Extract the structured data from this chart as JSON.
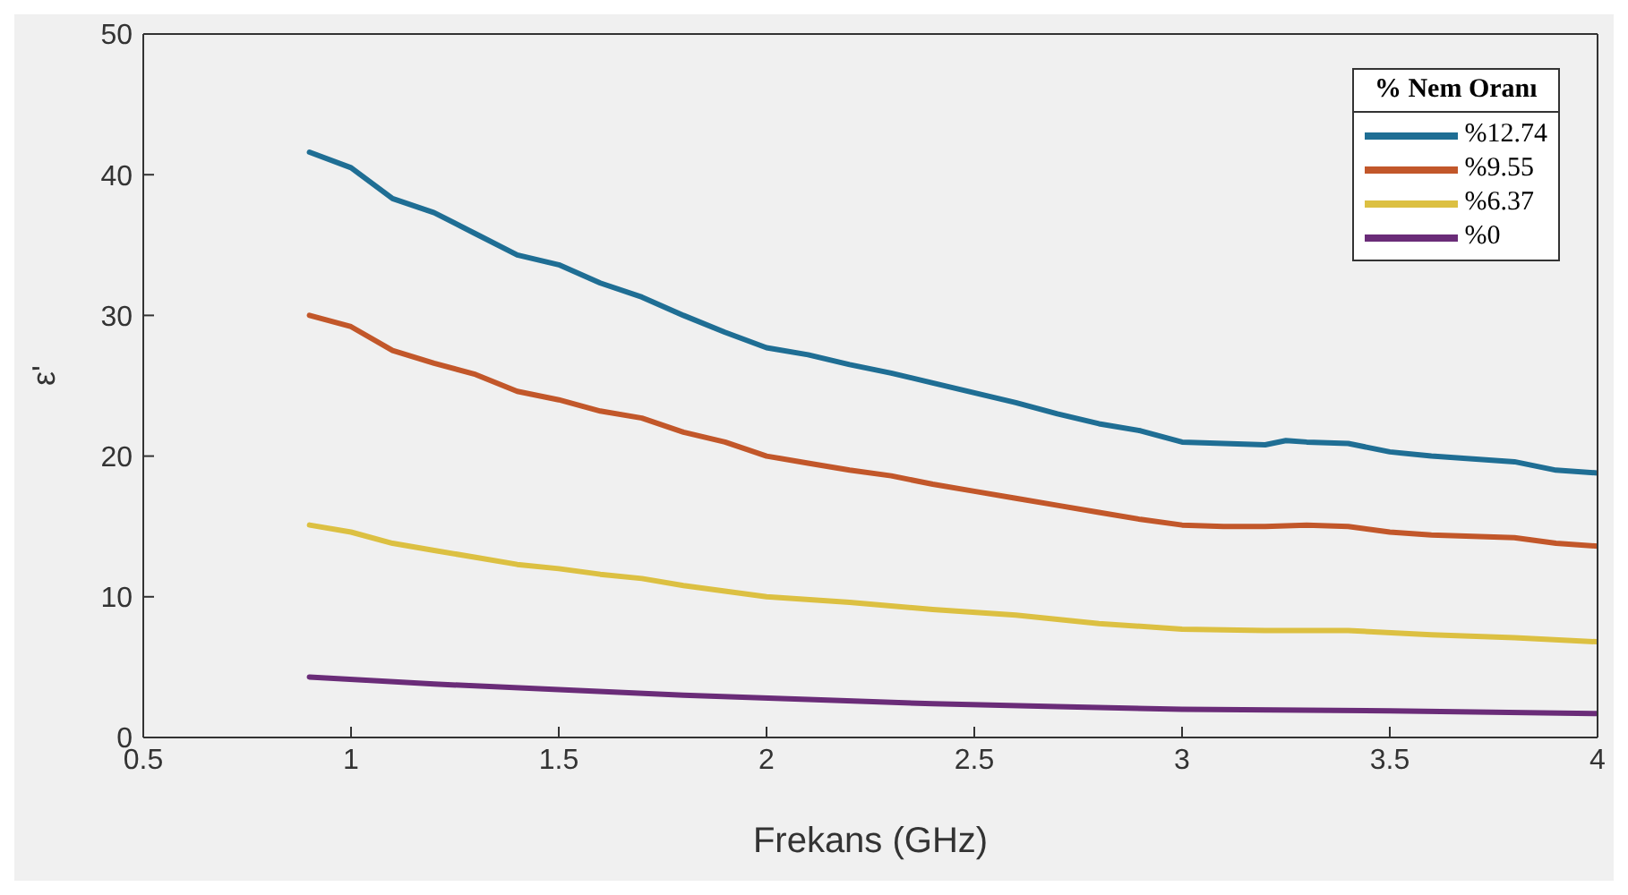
{
  "chart_data": {
    "type": "line",
    "xlabel": "Frekans (GHz)",
    "ylabel": "ε'",
    "legend_title": "% Nem Oranı",
    "legend": "top right",
    "grid": false,
    "marker": "none",
    "line_style": "solid",
    "xlim": [
      0.5,
      4
    ],
    "xticks": [
      0.5,
      1,
      1.5,
      2,
      2.5,
      3,
      3.5,
      4
    ],
    "ylim": [
      0,
      50
    ],
    "yticks": [
      0,
      10,
      20,
      30,
      40,
      50
    ],
    "series": [
      {
        "name": "%12.74",
        "color": "#1f6e94",
        "x": [
          0.9,
          1.0,
          1.1,
          1.2,
          1.3,
          1.4,
          1.5,
          1.6,
          1.7,
          1.8,
          1.9,
          2.0,
          2.1,
          2.2,
          2.3,
          2.4,
          2.5,
          2.6,
          2.7,
          2.8,
          2.9,
          3.0,
          3.1,
          3.2,
          3.25,
          3.3,
          3.4,
          3.5,
          3.6,
          3.7,
          3.8,
          3.9,
          4.0
        ],
        "values": [
          41.6,
          40.5,
          38.3,
          37.3,
          35.8,
          34.3,
          33.6,
          32.3,
          31.3,
          30.0,
          28.8,
          27.7,
          27.2,
          26.5,
          25.9,
          25.2,
          24.5,
          23.8,
          23.0,
          22.3,
          21.8,
          21.0,
          20.9,
          20.8,
          21.1,
          21.0,
          20.9,
          20.3,
          20.0,
          19.8,
          19.6,
          19.0,
          18.8
        ]
      },
      {
        "name": "%9.55",
        "color": "#c2572a",
        "x": [
          0.9,
          1.0,
          1.1,
          1.2,
          1.3,
          1.4,
          1.5,
          1.6,
          1.7,
          1.8,
          1.9,
          2.0,
          2.1,
          2.2,
          2.3,
          2.4,
          2.5,
          2.6,
          2.7,
          2.8,
          2.9,
          3.0,
          3.1,
          3.2,
          3.3,
          3.4,
          3.5,
          3.6,
          3.7,
          3.8,
          3.9,
          4.0
        ],
        "values": [
          30.0,
          29.2,
          27.5,
          26.6,
          25.8,
          24.6,
          24.0,
          23.2,
          22.7,
          21.7,
          21.0,
          20.0,
          19.5,
          19.0,
          18.6,
          18.0,
          17.5,
          17.0,
          16.5,
          16.0,
          15.5,
          15.1,
          15.0,
          15.0,
          15.1,
          15.0,
          14.6,
          14.4,
          14.3,
          14.2,
          13.8,
          13.6
        ]
      },
      {
        "name": "%6.37",
        "color": "#dcc042",
        "x": [
          0.9,
          1.0,
          1.1,
          1.2,
          1.3,
          1.4,
          1.5,
          1.6,
          1.7,
          1.8,
          1.9,
          2.0,
          2.2,
          2.4,
          2.6,
          2.8,
          3.0,
          3.2,
          3.4,
          3.6,
          3.8,
          4.0
        ],
        "values": [
          15.1,
          14.6,
          13.8,
          13.3,
          12.8,
          12.3,
          12.0,
          11.6,
          11.3,
          10.8,
          10.4,
          10.0,
          9.6,
          9.1,
          8.7,
          8.1,
          7.7,
          7.6,
          7.6,
          7.3,
          7.1,
          6.8
        ]
      },
      {
        "name": "%0",
        "color": "#6a2c78",
        "x": [
          0.9,
          1.2,
          1.5,
          1.8,
          2.1,
          2.4,
          2.7,
          3.0,
          3.5,
          4.0
        ],
        "values": [
          4.3,
          3.8,
          3.4,
          3.0,
          2.7,
          2.4,
          2.2,
          2.0,
          1.9,
          1.7
        ]
      }
    ]
  }
}
